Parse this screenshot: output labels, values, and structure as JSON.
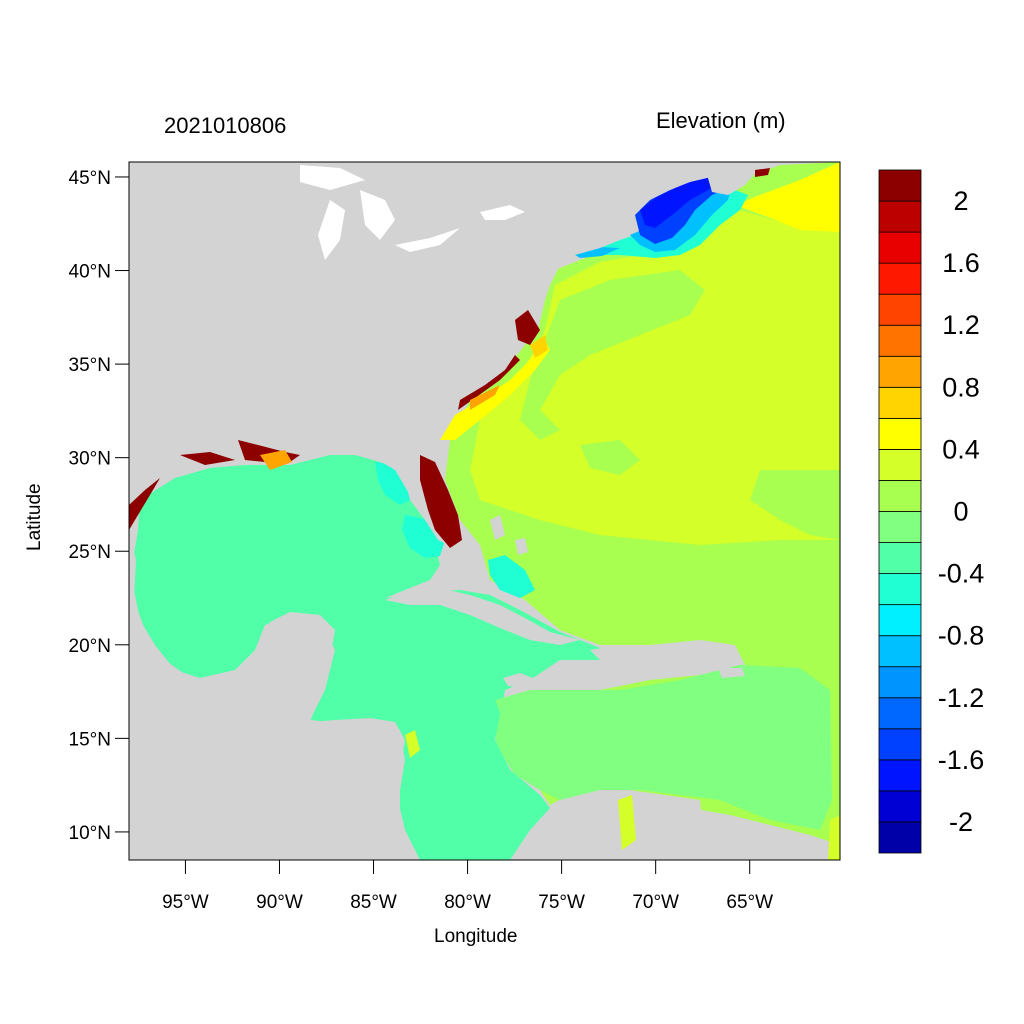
{
  "map": {
    "timestamp": "2021010806",
    "variable_label": "Elevation (m)",
    "xaxis_title": "Longitude",
    "yaxis_title": "Latitude",
    "extent": {
      "lon_min": -98,
      "lon_max": -60.2,
      "lat_min": 8.5,
      "lat_max": 45.8
    },
    "lat_ticks": [
      {
        "value": 45,
        "label": "45°N"
      },
      {
        "value": 40,
        "label": "40°N"
      },
      {
        "value": 35,
        "label": "35°N"
      },
      {
        "value": 30,
        "label": "30°N"
      },
      {
        "value": 25,
        "label": "25°N"
      },
      {
        "value": 20,
        "label": "20°N"
      },
      {
        "value": 15,
        "label": "15°N"
      },
      {
        "value": 10,
        "label": "10°N"
      }
    ],
    "lon_ticks": [
      {
        "value": -95,
        "label": "95°W"
      },
      {
        "value": -90,
        "label": "90°W"
      },
      {
        "value": -85,
        "label": "85°W"
      },
      {
        "value": -80,
        "label": "80°W"
      },
      {
        "value": -75,
        "label": "75°W"
      },
      {
        "value": -70,
        "label": "70°W"
      },
      {
        "value": -65,
        "label": "65°W"
      }
    ],
    "land_color": "#d3d3d3",
    "colorbar": {
      "min": -2.2,
      "max": 2.2,
      "colors": [
        "#0000a8",
        "#0000d4",
        "#0014ff",
        "#0040ff",
        "#0068ff",
        "#0094ff",
        "#00c0ff",
        "#00f0ff",
        "#20ffd4",
        "#50ffa8",
        "#80ff80",
        "#a8ff50",
        "#d4ff28",
        "#ffff00",
        "#ffd400",
        "#ffa400",
        "#ff7400",
        "#ff4400",
        "#ff1800",
        "#e80000",
        "#bc0000",
        "#8c0000"
      ],
      "labels": [
        {
          "value": 2,
          "text": "2"
        },
        {
          "value": 1.6,
          "text": "1.6"
        },
        {
          "value": 1.2,
          "text": "1.2"
        },
        {
          "value": 0.8,
          "text": "0.8"
        },
        {
          "value": 0.4,
          "text": "0.4"
        },
        {
          "value": 0,
          "text": "0"
        },
        {
          "value": -0.4,
          "text": "-0.4"
        },
        {
          "value": -0.8,
          "text": "-0.8"
        },
        {
          "value": -1.2,
          "text": "-1.2"
        },
        {
          "value": -1.6,
          "text": "-1.6"
        },
        {
          "value": -2,
          "text": "-2"
        }
      ]
    },
    "field_colors": {
      "gulf": "#50ffa8",
      "atlantic_high": "#d4ff28",
      "atlantic_mid": "#a8ff50",
      "caribbean": "#80ff80",
      "shelf_positive": "#ffff00",
      "surge": "#8c0000",
      "neg_weak": "#20ffd4",
      "neg_mid": "#00c0ff",
      "neg_strong": "#0040ff",
      "neg_max": "#0014ff"
    }
  }
}
